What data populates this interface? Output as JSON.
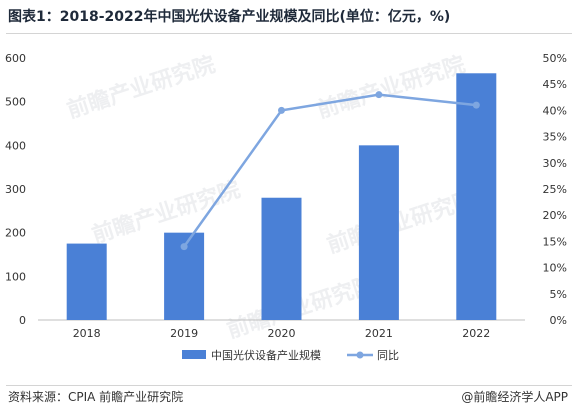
{
  "page": {
    "title": "图表1：2018-2022年中国光伏设备产业规模及同比(单位：亿元，%)",
    "source": "资料来源：CPIA 前瞻产业研究院",
    "brand": "@前瞻经济学人APP",
    "watermark": "前瞻产业研究院"
  },
  "chart_data": {
    "type": "bar",
    "categories": [
      "2018",
      "2019",
      "2020",
      "2021",
      "2022"
    ],
    "series": [
      {
        "name": "中国光伏设备产业规模",
        "type": "bar",
        "axis": "left",
        "values": [
          175,
          200,
          280,
          400,
          565
        ]
      },
      {
        "name": "同比",
        "type": "line",
        "axis": "right",
        "values": [
          null,
          14,
          40,
          43,
          41
        ]
      }
    ],
    "ylim": [
      0,
      600
    ],
    "yticks": [
      0,
      100,
      200,
      300,
      400,
      500,
      600
    ],
    "y2lim": [
      0,
      50
    ],
    "y2ticks": [
      "0%",
      "5%",
      "10%",
      "15%",
      "20%",
      "25%",
      "30%",
      "35%",
      "40%",
      "45%",
      "50%"
    ],
    "grid": false,
    "legend_position": "bottom",
    "colors": {
      "bar": "#4a80d6",
      "line": "#7ea6e0",
      "axis": "#bfbfbf",
      "text": "#333333"
    }
  }
}
